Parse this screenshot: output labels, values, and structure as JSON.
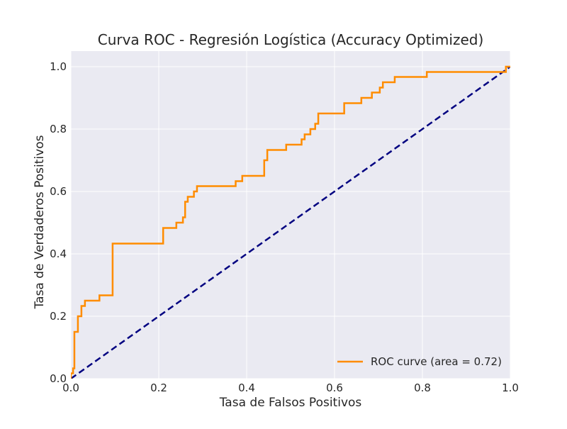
{
  "chart_data": {
    "type": "line",
    "title": "Curva ROC - Regresión Logística (Accuracy Optimized)",
    "xlabel": "Tasa de Falsos Positivos",
    "ylabel": "Tasa de Verdaderos Positivos",
    "xlim": [
      0.0,
      1.0
    ],
    "ylim": [
      0.0,
      1.05
    ],
    "xticks": [
      0.0,
      0.2,
      0.4,
      0.6,
      0.8,
      1.0
    ],
    "yticks": [
      0.0,
      0.2,
      0.4,
      0.6,
      0.8,
      1.0
    ],
    "xtick_labels": [
      "0.0",
      "0.2",
      "0.4",
      "0.6",
      "0.8",
      "1.0"
    ],
    "ytick_labels": [
      "0.0",
      "0.2",
      "0.4",
      "0.6",
      "0.8",
      "1.0"
    ],
    "grid": true,
    "legend_position": "lower-right",
    "background_color": "#eaeaf2",
    "series": [
      {
        "name": "ROC curve (area = 0.72)",
        "color": "#ff8c00",
        "style": "solid",
        "points": [
          [
            0.0,
            0.0
          ],
          [
            0.0,
            0.017
          ],
          [
            0.005,
            0.017
          ],
          [
            0.005,
            0.033
          ],
          [
            0.008,
            0.033
          ],
          [
            0.008,
            0.15
          ],
          [
            0.016,
            0.15
          ],
          [
            0.016,
            0.2
          ],
          [
            0.024,
            0.2
          ],
          [
            0.024,
            0.233
          ],
          [
            0.032,
            0.233
          ],
          [
            0.032,
            0.25
          ],
          [
            0.065,
            0.25
          ],
          [
            0.065,
            0.267
          ],
          [
            0.095,
            0.267
          ],
          [
            0.095,
            0.433
          ],
          [
            0.21,
            0.433
          ],
          [
            0.21,
            0.483
          ],
          [
            0.24,
            0.483
          ],
          [
            0.24,
            0.5
          ],
          [
            0.255,
            0.5
          ],
          [
            0.255,
            0.517
          ],
          [
            0.26,
            0.517
          ],
          [
            0.26,
            0.567
          ],
          [
            0.266,
            0.567
          ],
          [
            0.266,
            0.583
          ],
          [
            0.28,
            0.583
          ],
          [
            0.28,
            0.6
          ],
          [
            0.287,
            0.6
          ],
          [
            0.287,
            0.617
          ],
          [
            0.375,
            0.617
          ],
          [
            0.375,
            0.633
          ],
          [
            0.39,
            0.633
          ],
          [
            0.39,
            0.65
          ],
          [
            0.44,
            0.65
          ],
          [
            0.44,
            0.7
          ],
          [
            0.447,
            0.7
          ],
          [
            0.447,
            0.733
          ],
          [
            0.49,
            0.733
          ],
          [
            0.49,
            0.75
          ],
          [
            0.525,
            0.75
          ],
          [
            0.525,
            0.767
          ],
          [
            0.532,
            0.767
          ],
          [
            0.532,
            0.783
          ],
          [
            0.545,
            0.783
          ],
          [
            0.545,
            0.8
          ],
          [
            0.556,
            0.8
          ],
          [
            0.556,
            0.817
          ],
          [
            0.563,
            0.817
          ],
          [
            0.563,
            0.85
          ],
          [
            0.622,
            0.85
          ],
          [
            0.622,
            0.883
          ],
          [
            0.661,
            0.883
          ],
          [
            0.661,
            0.9
          ],
          [
            0.685,
            0.9
          ],
          [
            0.685,
            0.917
          ],
          [
            0.703,
            0.917
          ],
          [
            0.703,
            0.933
          ],
          [
            0.71,
            0.933
          ],
          [
            0.71,
            0.95
          ],
          [
            0.737,
            0.95
          ],
          [
            0.737,
            0.967
          ],
          [
            0.81,
            0.967
          ],
          [
            0.81,
            0.983
          ],
          [
            0.99,
            0.983
          ],
          [
            0.99,
            1.0
          ],
          [
            1.0,
            1.0
          ]
        ]
      },
      {
        "name": "",
        "color": "#000080",
        "style": "dashed",
        "points": [
          [
            0.0,
            0.0
          ],
          [
            1.0,
            1.0
          ]
        ]
      }
    ]
  }
}
